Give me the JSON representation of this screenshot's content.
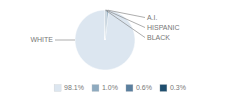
{
  "chart_data": {
    "type": "pie",
    "categories": [
      "WHITE",
      "A.I.",
      "HISPANIC",
      "BLACK"
    ],
    "values": [
      98.1,
      1.0,
      0.6,
      0.3
    ],
    "value_labels": [
      "98.1%",
      "1.0%",
      "0.6%",
      "0.3%"
    ],
    "colors": [
      "#dce6f0",
      "#8eaabf",
      "#5b7f9e",
      "#1f4e6e"
    ],
    "legend": "bottom"
  }
}
